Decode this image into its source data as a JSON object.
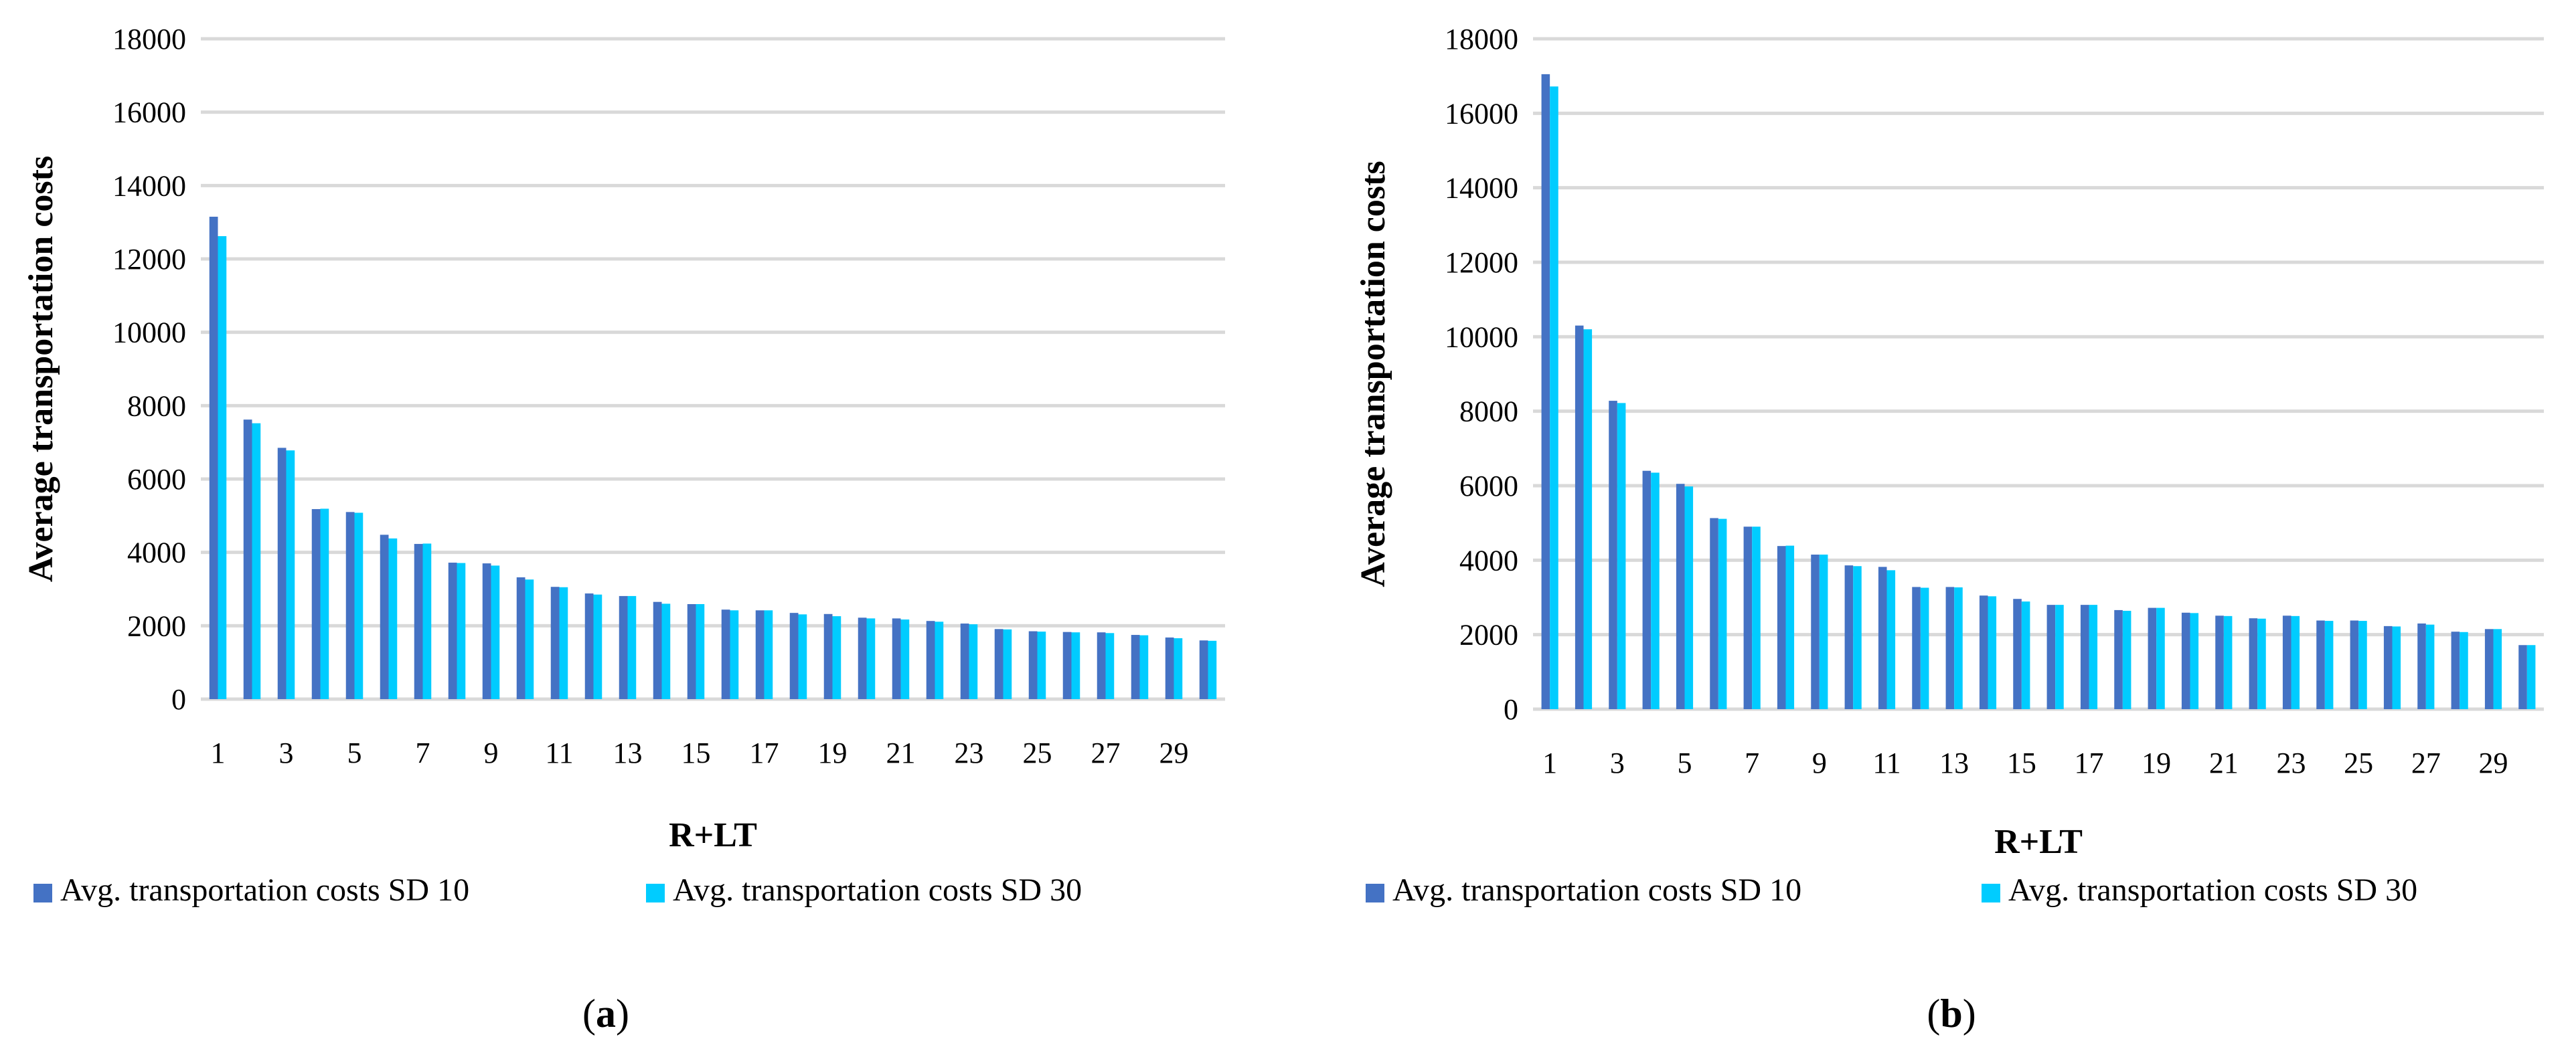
{
  "chart_data": [
    {
      "type": "bar",
      "panel_label": "a",
      "xlabel": "R+LT",
      "ylabel": "Average transportation costs",
      "ylim": [
        0,
        18000
      ],
      "yticks": [
        0,
        2000,
        4000,
        6000,
        8000,
        10000,
        12000,
        14000,
        16000,
        18000
      ],
      "categories": [
        1,
        2,
        3,
        4,
        5,
        6,
        7,
        8,
        9,
        10,
        11,
        12,
        13,
        14,
        15,
        16,
        17,
        18,
        19,
        20,
        21,
        22,
        23,
        24,
        25,
        26,
        27,
        28,
        29,
        30
      ],
      "xtick_labels": [
        "1",
        "3",
        "5",
        "7",
        "9",
        "11",
        "13",
        "15",
        "17",
        "19",
        "21",
        "23",
        "25",
        "27",
        "29"
      ],
      "series": [
        {
          "name": "Avg. transportation costs SD 10",
          "color": "#4472C4",
          "values": [
            13150,
            7620,
            6850,
            5180,
            5100,
            4480,
            4230,
            3720,
            3700,
            3320,
            3060,
            2880,
            2810,
            2650,
            2590,
            2440,
            2420,
            2350,
            2320,
            2220,
            2200,
            2130,
            2060,
            1910,
            1850,
            1830,
            1820,
            1750,
            1680,
            1600
          ]
        },
        {
          "name": "Avg. transportation costs SD 30",
          "color": "#00CCFF",
          "values": [
            12620,
            7520,
            6780,
            5190,
            5080,
            4380,
            4240,
            3710,
            3640,
            3260,
            3050,
            2850,
            2810,
            2600,
            2590,
            2420,
            2420,
            2310,
            2260,
            2200,
            2170,
            2110,
            2040,
            1900,
            1840,
            1820,
            1800,
            1740,
            1660,
            1590
          ]
        }
      ]
    },
    {
      "type": "bar",
      "panel_label": "b",
      "xlabel": "R+LT",
      "ylabel": "Average transportation costs",
      "ylim": [
        0,
        18000
      ],
      "yticks": [
        0,
        2000,
        4000,
        6000,
        8000,
        10000,
        12000,
        14000,
        16000,
        18000
      ],
      "categories": [
        1,
        2,
        3,
        4,
        5,
        6,
        7,
        8,
        9,
        10,
        11,
        12,
        13,
        14,
        15,
        16,
        17,
        18,
        19,
        20,
        21,
        22,
        23,
        24,
        25,
        26,
        27,
        28,
        29,
        30
      ],
      "xtick_labels": [
        "1",
        "3",
        "5",
        "7",
        "9",
        "11",
        "13",
        "15",
        "17",
        "19",
        "21",
        "23",
        "25",
        "27",
        "29"
      ],
      "series": [
        {
          "name": "Avg. transportation costs SD 10",
          "color": "#4472C4",
          "values": [
            17050,
            10300,
            8280,
            6400,
            6050,
            5130,
            4900,
            4380,
            4150,
            3860,
            3820,
            3280,
            3280,
            3050,
            2960,
            2800,
            2800,
            2660,
            2720,
            2590,
            2510,
            2440,
            2510,
            2380,
            2380,
            2230,
            2300,
            2080,
            2150,
            1720
          ]
        },
        {
          "name": "Avg. transportation costs SD 30",
          "color": "#00CCFF",
          "values": [
            16720,
            10200,
            8220,
            6350,
            5980,
            5110,
            4900,
            4390,
            4150,
            3840,
            3730,
            3260,
            3270,
            3030,
            2890,
            2800,
            2800,
            2640,
            2720,
            2580,
            2500,
            2430,
            2500,
            2370,
            2370,
            2220,
            2270,
            2070,
            2150,
            1720
          ]
        }
      ]
    }
  ]
}
